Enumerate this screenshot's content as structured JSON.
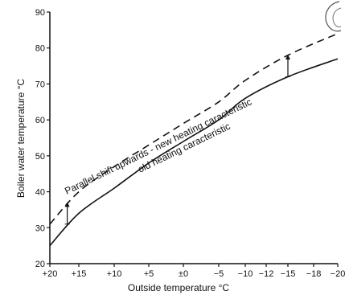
{
  "chart_data": {
    "type": "line",
    "xlabel": "Outside temperature °C",
    "ylabel": "Boiler water temperature °C",
    "x_ticks": [
      "+20",
      "+15",
      "+10",
      "+5",
      "±0",
      "−5",
      "−10",
      "−12",
      "−15",
      "−18",
      "−20"
    ],
    "x_tick_values": [
      20,
      15,
      10,
      5,
      0,
      -5,
      -10,
      -12,
      -15,
      -18,
      -20
    ],
    "ylim": [
      20,
      90
    ],
    "y_ticks": [
      20,
      30,
      40,
      50,
      60,
      70,
      80,
      90
    ],
    "grid": false,
    "series": [
      {
        "name": "old heating caracteristic",
        "style": "solid",
        "x": [
          20,
          15,
          10,
          5,
          0,
          -5,
          -10,
          -15,
          -20
        ],
        "y": [
          25,
          34,
          41,
          48,
          54,
          60,
          66,
          72,
          77
        ]
      },
      {
        "name": "Parallel shift upwards - new heating caracteristic",
        "style": "dashed",
        "x": [
          20,
          15,
          10,
          5,
          0,
          -5,
          -10,
          -15,
          -20
        ],
        "y": [
          31,
          40,
          47,
          53,
          59,
          65,
          71,
          78,
          84
        ]
      }
    ],
    "annotations": [
      {
        "type": "arrow",
        "x": 17,
        "from": 31,
        "to": 37
      },
      {
        "type": "arrow",
        "x": -15,
        "from": 72,
        "to": 78
      }
    ]
  }
}
